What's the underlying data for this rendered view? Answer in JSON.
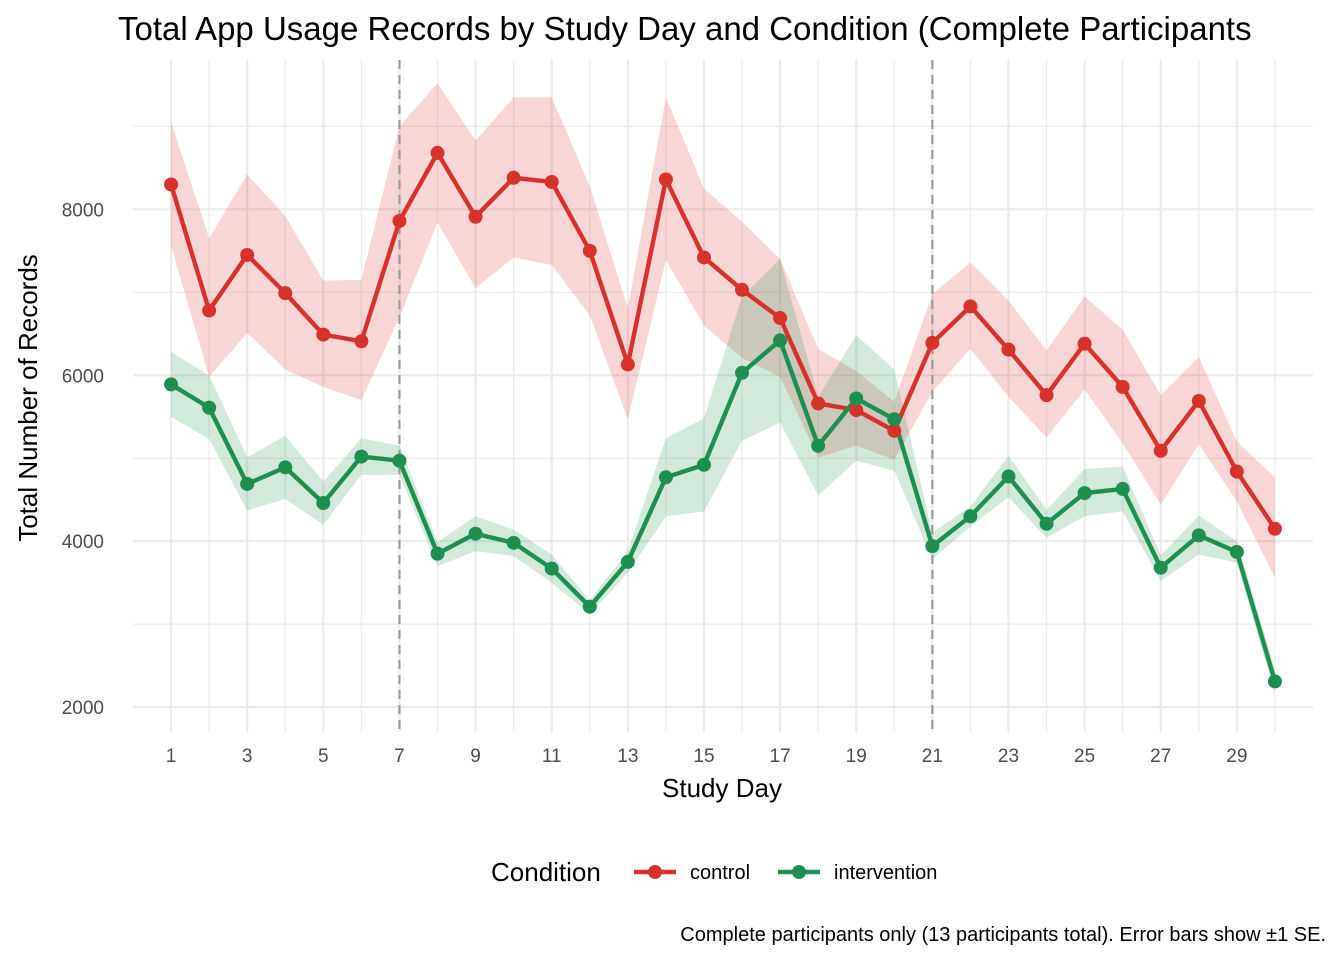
{
  "chart_data": {
    "type": "line",
    "title": "Total App Usage Records by Study Day and Condition (Complete Participants",
    "xlabel": "Study Day",
    "ylabel": "Total Number of Records",
    "caption": "Complete participants only (13 participants total). Error bars show ±1 SE.",
    "legend": {
      "title": "Condition",
      "position": "bottom"
    },
    "xlim": [
      0,
      31
    ],
    "ylim": [
      1700,
      9800
    ],
    "x_ticks": [
      1,
      3,
      5,
      7,
      9,
      11,
      13,
      15,
      17,
      19,
      21,
      23,
      25,
      27,
      29
    ],
    "y_ticks": [
      2000,
      4000,
      6000,
      8000
    ],
    "vlines": [
      7,
      21
    ],
    "grid": true,
    "x": [
      1,
      2,
      3,
      4,
      5,
      6,
      7,
      8,
      9,
      10,
      11,
      12,
      13,
      14,
      15,
      16,
      17,
      18,
      19,
      20,
      21,
      22,
      23,
      24,
      25,
      26,
      27,
      28,
      29,
      30
    ],
    "series": [
      {
        "name": "control",
        "color": "#d7312b",
        "values": [
          8300,
          6780,
          7450,
          6990,
          6490,
          6410,
          7860,
          8680,
          7910,
          8380,
          8330,
          7500,
          6130,
          8360,
          7420,
          7030,
          6690,
          5660,
          5580,
          5330,
          6390,
          6830,
          6310,
          5760,
          6380,
          5860,
          5090,
          5690,
          4840,
          4150
        ],
        "upper": [
          9050,
          7650,
          8420,
          7920,
          7140,
          7150,
          9000,
          9520,
          8830,
          9350,
          9350,
          8280,
          6810,
          9350,
          8250,
          7850,
          7400,
          6320,
          6050,
          5680,
          6980,
          7360,
          6900,
          6300,
          6950,
          6550,
          5760,
          6220,
          5200,
          4770
        ],
        "lower": [
          7560,
          5980,
          6510,
          6070,
          5860,
          5700,
          6700,
          7840,
          7050,
          7420,
          7330,
          6720,
          5470,
          7390,
          6600,
          6210,
          5980,
          5010,
          5150,
          4980,
          5800,
          6320,
          5740,
          5250,
          5830,
          5180,
          4440,
          5170,
          4480,
          3560
        ]
      },
      {
        "name": "intervention",
        "color": "#1d8f50",
        "values": [
          5890,
          5610,
          4690,
          4890,
          4460,
          5020,
          4970,
          3850,
          4090,
          3980,
          3670,
          3210,
          3750,
          4770,
          4920,
          6030,
          6420,
          5150,
          5720,
          5470,
          3940,
          4300,
          4780,
          4210,
          4580,
          4630,
          3680,
          4070,
          3870,
          2310
        ],
        "upper": [
          6280,
          6000,
          5010,
          5270,
          4720,
          5240,
          5150,
          3990,
          4300,
          4140,
          3840,
          3290,
          3880,
          5240,
          5480,
          6950,
          7400,
          5740,
          6480,
          6070,
          4100,
          4420,
          5030,
          4380,
          4870,
          4900,
          3830,
          4310,
          4000,
          2460
        ],
        "lower": [
          5500,
          5230,
          4370,
          4510,
          4200,
          4800,
          4800,
          3700,
          3880,
          3820,
          3500,
          3120,
          3620,
          4300,
          4360,
          5210,
          5430,
          4550,
          4970,
          4850,
          3780,
          4180,
          4530,
          4040,
          4300,
          4360,
          3520,
          3840,
          3740,
          2160
        ]
      }
    ]
  }
}
